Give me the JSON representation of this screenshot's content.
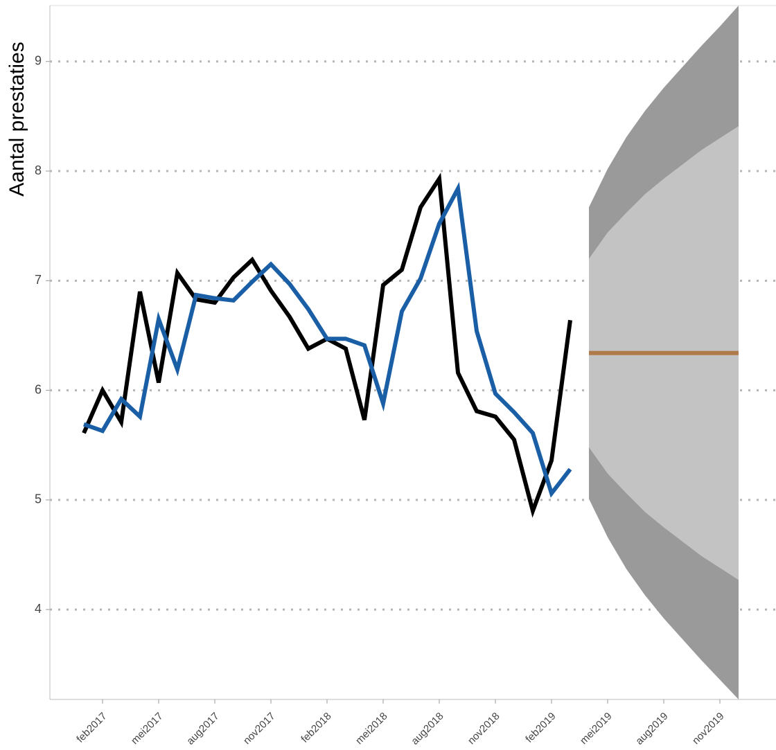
{
  "chart_data": {
    "type": "line",
    "y_label": "Aantal prestaties",
    "categories": [
      null,
      "feb2017",
      null,
      null,
      "mei2017",
      null,
      null,
      "aug2017",
      null,
      null,
      "nov2017",
      null,
      null,
      "feb2018",
      null,
      null,
      "mei2018",
      null,
      null,
      "aug2018",
      null,
      null,
      "nov2018",
      null,
      null,
      "feb2019",
      null,
      null,
      "mei2019",
      null,
      null,
      "aug2019",
      null,
      null,
      "nov2019",
      null
    ],
    "series": [
      {
        "color": "#000000",
        "values": [
          5.61,
          6.0,
          5.71,
          6.9,
          6.07,
          7.07,
          6.83,
          6.8,
          7.03,
          7.19,
          6.91,
          6.67,
          6.38,
          6.47,
          6.38,
          5.73,
          6.96,
          7.1,
          7.67,
          7.93,
          6.16,
          5.81,
          5.76,
          5.55,
          4.9,
          5.36,
          6.64,
          null,
          null,
          null,
          null,
          null,
          null,
          null,
          null,
          null
        ]
      },
      {
        "color": "#1a5fa6",
        "values": [
          5.69,
          5.63,
          5.92,
          5.76,
          6.65,
          6.19,
          6.87,
          6.84,
          6.82,
          6.99,
          7.15,
          6.97,
          6.74,
          6.47,
          6.47,
          6.41,
          5.88,
          6.72,
          7.02,
          7.52,
          7.84,
          6.54,
          5.97,
          5.8,
          5.61,
          5.06,
          5.28,
          null,
          null,
          null,
          null,
          null,
          null,
          null,
          null,
          null
        ]
      },
      {
        "color": "#b07a4a",
        "values": [
          null,
          null,
          null,
          null,
          null,
          null,
          null,
          null,
          null,
          null,
          null,
          null,
          null,
          null,
          null,
          null,
          null,
          null,
          null,
          null,
          null,
          null,
          null,
          null,
          null,
          null,
          null,
          6.34,
          6.34,
          6.34,
          6.34,
          6.34,
          6.34,
          6.34,
          6.34,
          6.34
        ]
      }
    ],
    "bands": [
      {
        "color": "#9a9a9a",
        "upper": [
          null,
          null,
          null,
          null,
          null,
          null,
          null,
          null,
          null,
          null,
          null,
          null,
          null,
          null,
          null,
          null,
          null,
          null,
          null,
          null,
          null,
          null,
          null,
          null,
          null,
          null,
          null,
          7.67,
          8.02,
          8.31,
          8.55,
          8.76,
          8.95,
          9.14,
          9.32,
          9.51
        ],
        "lower": [
          null,
          null,
          null,
          null,
          null,
          null,
          null,
          null,
          null,
          null,
          null,
          null,
          null,
          null,
          null,
          null,
          null,
          null,
          null,
          null,
          null,
          null,
          null,
          null,
          null,
          null,
          null,
          5.01,
          4.66,
          4.37,
          4.13,
          3.92,
          3.73,
          3.54,
          3.36,
          3.18
        ]
      },
      {
        "color": "#c3c3c3",
        "upper": [
          null,
          null,
          null,
          null,
          null,
          null,
          null,
          null,
          null,
          null,
          null,
          null,
          null,
          null,
          null,
          null,
          null,
          null,
          null,
          null,
          null,
          null,
          null,
          null,
          null,
          null,
          null,
          7.2,
          7.44,
          7.62,
          7.79,
          7.93,
          8.06,
          8.19,
          8.3,
          8.41
        ],
        "lower": [
          null,
          null,
          null,
          null,
          null,
          null,
          null,
          null,
          null,
          null,
          null,
          null,
          null,
          null,
          null,
          null,
          null,
          null,
          null,
          null,
          null,
          null,
          null,
          null,
          null,
          null,
          null,
          5.48,
          5.24,
          5.06,
          4.89,
          4.75,
          4.62,
          4.49,
          4.38,
          4.27
        ]
      }
    ],
    "ylim": [
      3.18,
      9.51
    ],
    "yticks": [
      4,
      5,
      6,
      7,
      8,
      9
    ],
    "grid": true
  }
}
